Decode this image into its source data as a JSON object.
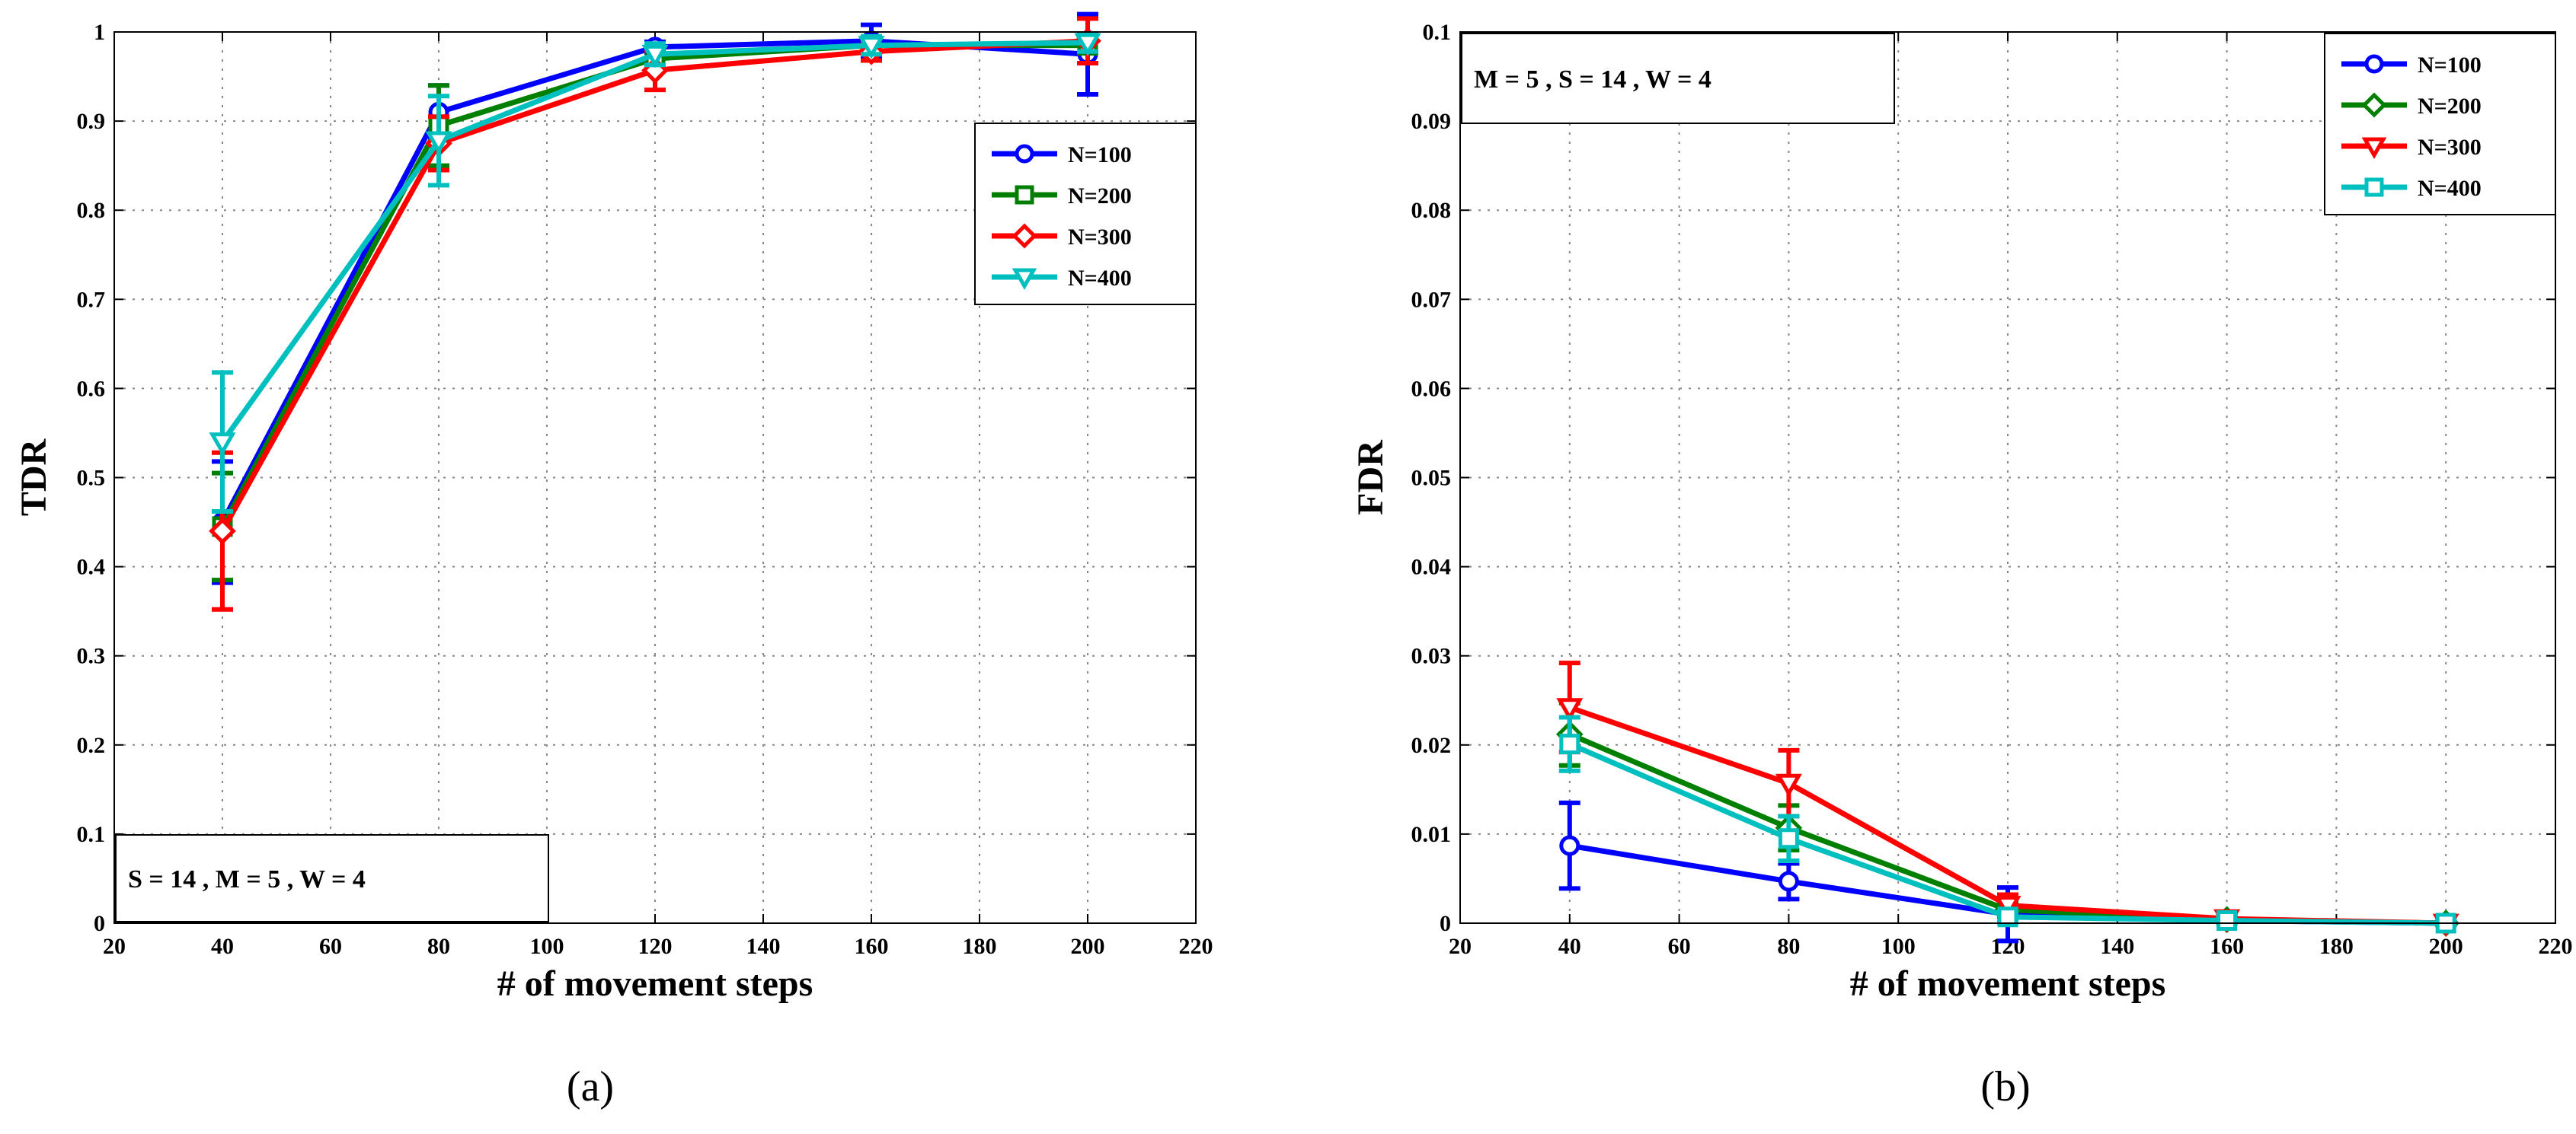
{
  "chart_data": [
    {
      "type": "line",
      "panel": "a",
      "caption": "(a)",
      "xlabel": "# of movement steps",
      "ylabel": "TDR",
      "xlim": [
        20,
        220
      ],
      "ylim": [
        0,
        1
      ],
      "xticks": [
        20,
        40,
        60,
        80,
        100,
        120,
        140,
        160,
        180,
        200,
        220
      ],
      "yticks": [
        0,
        0.1,
        0.2,
        0.3,
        0.4,
        0.5,
        0.6,
        0.7,
        0.8,
        0.9,
        1
      ],
      "ytick_labels": [
        "0",
        "0.1",
        "0.2",
        "0.3",
        "0.4",
        "0.5",
        "0.6",
        "0.7",
        "0.8",
        "0.9",
        "1"
      ],
      "grid": true,
      "annotation": "S = 14 , M = 5 , W = 4",
      "annotation_position": "bottom-left",
      "legend_position": "right",
      "x": [
        40,
        80,
        120,
        160,
        200
      ],
      "series": [
        {
          "name": "N=100",
          "color": "#0000ff",
          "marker": "circle",
          "values": [
            0.45,
            0.91,
            0.983,
            0.99,
            0.975
          ],
          "err": [
            0.068,
            0.03,
            0.006,
            0.018,
            0.045
          ]
        },
        {
          "name": "N=200",
          "color": "#007f00",
          "marker": "square",
          "values": [
            0.445,
            0.895,
            0.97,
            0.985,
            0.985
          ],
          "err": [
            0.06,
            0.045,
            0.01,
            0.01,
            0.008
          ]
        },
        {
          "name": "N=300",
          "color": "#ff0000",
          "marker": "diamond",
          "values": [
            0.44,
            0.875,
            0.957,
            0.978,
            0.99
          ],
          "err": [
            0.088,
            0.03,
            0.022,
            0.01,
            0.025
          ]
        },
        {
          "name": "N=400",
          "color": "#00bfbf",
          "marker": "triangle-down",
          "values": [
            0.54,
            0.878,
            0.975,
            0.985,
            0.988
          ],
          "err": [
            0.078,
            0.05,
            0.012,
            0.01,
            0.01
          ]
        }
      ]
    },
    {
      "type": "line",
      "panel": "b",
      "caption": "(b)",
      "xlabel": "# of movement steps",
      "ylabel": "FDR",
      "xlim": [
        20,
        220
      ],
      "ylim": [
        0,
        0.1
      ],
      "xticks": [
        20,
        40,
        60,
        80,
        100,
        120,
        140,
        160,
        180,
        200,
        220
      ],
      "yticks": [
        0,
        0.01,
        0.02,
        0.03,
        0.04,
        0.05,
        0.06,
        0.07,
        0.08,
        0.09,
        0.1
      ],
      "ytick_labels": [
        "0",
        "0.01",
        "0.02",
        "0.03",
        "0.04",
        "0.05",
        "0.06",
        "0.07",
        "0.08",
        "0.09",
        "0.1"
      ],
      "grid": true,
      "annotation": "M = 5 , S = 14 , W = 4",
      "annotation_position": "top-left",
      "legend_position": "top-right",
      "x": [
        40,
        80,
        120,
        160,
        200
      ],
      "series": [
        {
          "name": "N=100",
          "color": "#0000ff",
          "marker": "circle",
          "values": [
            0.0087,
            0.0047,
            0.001,
            0.0003,
            0.0
          ],
          "err": [
            0.0048,
            0.002,
            0.003,
            0.0003,
            0.0002
          ]
        },
        {
          "name": "N=200",
          "color": "#007f00",
          "marker": "diamond",
          "values": [
            0.0212,
            0.0107,
            0.0015,
            0.0004,
            0.0
          ],
          "err": [
            0.0035,
            0.0025,
            0.0008,
            0.0003,
            0.0002
          ]
        },
        {
          "name": "N=300",
          "color": "#ff0000",
          "marker": "triangle-down",
          "values": [
            0.0242,
            0.0157,
            0.002,
            0.0005,
            0.0
          ],
          "err": [
            0.005,
            0.0037,
            0.0012,
            0.0003,
            0.0002
          ]
        },
        {
          "name": "N=400",
          "color": "#00bfbf",
          "marker": "square",
          "values": [
            0.0201,
            0.0095,
            0.0007,
            0.0003,
            0.0
          ],
          "err": [
            0.003,
            0.0025,
            0.0006,
            0.0003,
            0.0002
          ]
        }
      ]
    }
  ]
}
